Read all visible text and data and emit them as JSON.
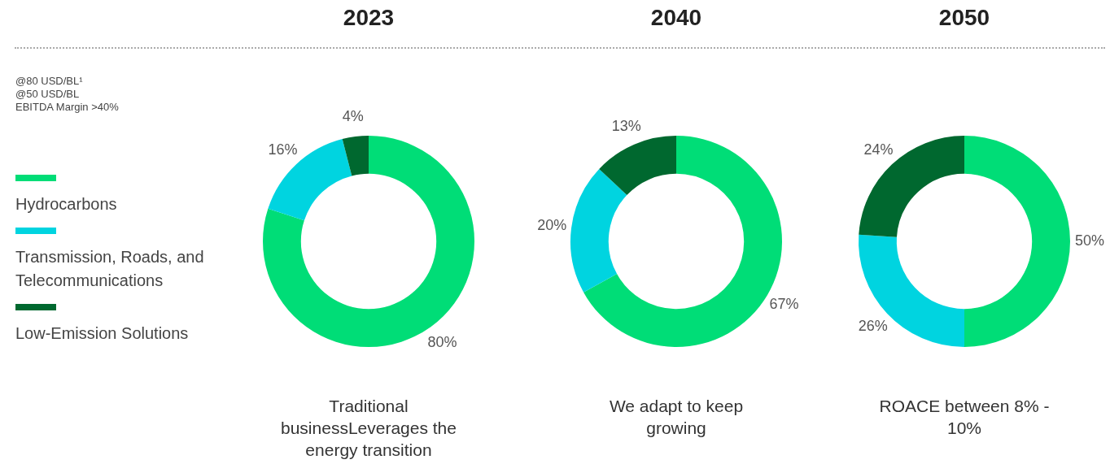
{
  "chart_data": [
    {
      "type": "donut",
      "title": "2023",
      "categories": [
        "Hydrocarbons",
        "Transmission, Roads, and Telecommunications",
        "Low-Emission Solutions"
      ],
      "values": [
        80,
        16,
        4
      ],
      "value_labels": [
        "80%",
        "16%",
        "4%"
      ],
      "colors": [
        "#00dd77",
        "#00d4e0",
        "#00682f"
      ],
      "legend": "left",
      "annotations": [
        "@80 USD/BL¹",
        "@50 USD/BL",
        "EBITDA Margin >40%",
        "Traditional businessLeverages the energy transition"
      ]
    },
    {
      "type": "donut",
      "title": "2040",
      "categories": [
        null,
        null,
        null
      ],
      "values": [
        67,
        20,
        13
      ],
      "value_labels": [
        "67%",
        "20%",
        "13%"
      ],
      "colors": [
        "#00dd77",
        "#00d4e0",
        "#00682f"
      ],
      "annotations": [
        "We adapt to keep growing"
      ]
    },
    {
      "type": "donut",
      "title": "2050",
      "categories": [
        null,
        null,
        null
      ],
      "values": [
        50,
        26,
        24
      ],
      "value_labels": [
        "50%",
        "26%",
        "24%"
      ],
      "colors": [
        "#00dd77",
        "#00d4e0",
        "#00682f"
      ],
      "annotations": [
        "ROACE between 8% - 10%"
      ]
    }
  ]
}
